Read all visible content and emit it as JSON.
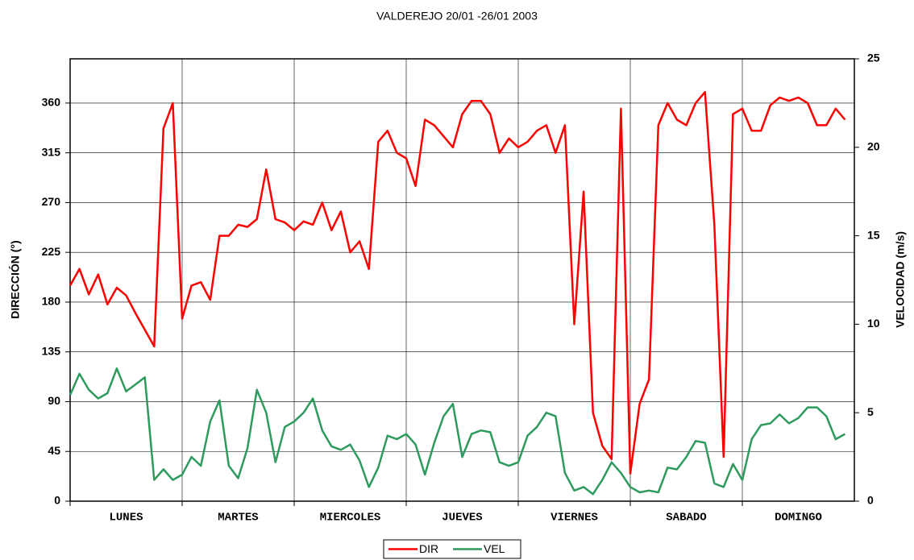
{
  "chart_data": {
    "type": "line",
    "title": "VALDEREJO 20/01 -26/01 2003",
    "ylabel": "DIRECCIÓN (°)",
    "y2label": "VELOCIDAD (m/s)",
    "categories": [
      "LUNES",
      "MARTES",
      "MIERCOLES",
      "JUEVES",
      "VIERNES",
      "SABADO",
      "DOMINGO"
    ],
    "xlim": [
      0,
      168
    ],
    "x": [
      0,
      2,
      4,
      6,
      8,
      10,
      12,
      14,
      16,
      18,
      20,
      22,
      24,
      26,
      28,
      30,
      32,
      34,
      36,
      38,
      40,
      42,
      44,
      46,
      48,
      50,
      52,
      54,
      56,
      58,
      60,
      62,
      64,
      66,
      68,
      70,
      72,
      74,
      76,
      78,
      80,
      82,
      84,
      86,
      88,
      90,
      92,
      94,
      96,
      98,
      100,
      102,
      104,
      106,
      108,
      110,
      112,
      114,
      116,
      118,
      120,
      122,
      124,
      126,
      128,
      130,
      132,
      134,
      136,
      138,
      140,
      142,
      144,
      146,
      148,
      150,
      152,
      154,
      156,
      158,
      160,
      162,
      164,
      166
    ],
    "ylim": [
      0,
      400
    ],
    "yticks": [
      0,
      45,
      90,
      135,
      180,
      225,
      270,
      315,
      360
    ],
    "y2lim": [
      0,
      25
    ],
    "y2ticks": [
      0,
      5,
      10,
      15,
      20,
      25
    ],
    "grid": true,
    "legend": "bottom",
    "series": [
      {
        "name": "DIR",
        "color": "#ff0000",
        "values": [
          195,
          210,
          187,
          205,
          178,
          193,
          186,
          170,
          155,
          140,
          337,
          360,
          165,
          195,
          198,
          182,
          240,
          240,
          250,
          248,
          255,
          300,
          255,
          252,
          245,
          253,
          250,
          270,
          245,
          262,
          225,
          235,
          210,
          325,
          335,
          315,
          310,
          285,
          345,
          340,
          330,
          320,
          350,
          362,
          362,
          350,
          315,
          328,
          320,
          325,
          335,
          340,
          315,
          340,
          160,
          280,
          80,
          50,
          38,
          355,
          25,
          88,
          110,
          340,
          360,
          345,
          340,
          360,
          370,
          250,
          40,
          350,
          355,
          335,
          335,
          358,
          365,
          362,
          365,
          360,
          340,
          340,
          355,
          345
        ]
      },
      {
        "name": "VEL",
        "color": "#2e9a5e",
        "axis": "y2",
        "values": [
          6.0,
          7.2,
          6.3,
          5.8,
          6.1,
          7.5,
          6.2,
          6.6,
          7.0,
          1.2,
          1.8,
          1.2,
          1.5,
          2.5,
          2.0,
          4.5,
          5.7,
          2.0,
          1.3,
          3.0,
          6.3,
          5.0,
          2.2,
          4.2,
          4.5,
          5.0,
          5.8,
          4.0,
          3.1,
          2.9,
          3.2,
          2.3,
          0.8,
          1.9,
          3.7,
          3.5,
          3.8,
          3.2,
          1.5,
          3.3,
          4.8,
          5.5,
          2.5,
          3.8,
          4.0,
          3.9,
          2.2,
          2.0,
          2.2,
          3.7,
          4.2,
          5.0,
          4.8,
          1.6,
          0.6,
          0.8,
          0.4,
          1.2,
          2.2,
          1.6,
          0.8,
          0.5,
          0.6,
          0.5,
          1.9,
          1.8,
          2.5,
          3.4,
          3.3,
          1.0,
          0.8,
          2.1,
          1.2,
          3.5,
          4.3,
          4.4,
          4.9,
          4.4,
          4.7,
          5.3,
          5.3,
          4.8,
          3.5,
          3.8
        ]
      }
    ]
  }
}
